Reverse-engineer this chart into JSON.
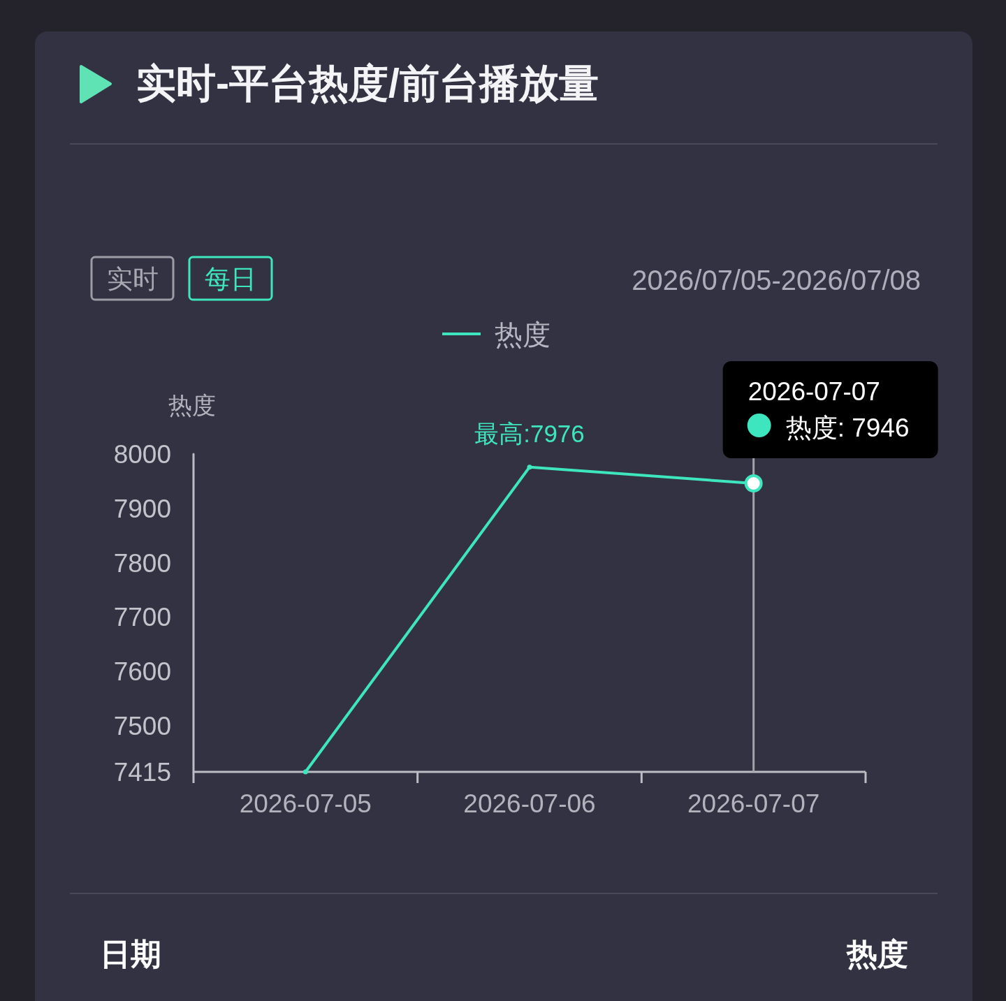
{
  "chart_data": {
    "type": "line",
    "title": "实时-平台热度/前台播放量",
    "subtitle": "2026/07/05-2026/07/08",
    "ylabel": "热度",
    "categories": [
      "2026-07-05",
      "2026-07-06",
      "2026-07-07"
    ],
    "series": [
      {
        "name": "热度",
        "color": "#3ee6bf",
        "values": [
          7415,
          7976,
          7946
        ],
        "value_labels": [
          null,
          "最高:7976",
          null
        ]
      }
    ],
    "ylim": [
      7415,
      8000
    ],
    "yticks": [
      7415,
      7500,
      7600,
      7700,
      7800,
      7900,
      8000
    ],
    "legend": "top",
    "marker": "circle",
    "line_style": "solid",
    "grid": false,
    "ref_lines": [
      {
        "axis": "x",
        "value": "2026-07-07",
        "color": "#a3a2ab"
      }
    ],
    "annotations": [
      {
        "text": "热度: 7946",
        "x": "2026-07-07",
        "y": 7946
      },
      "2026-07-07",
      "实时",
      "每日",
      "日期",
      "热度"
    ]
  }
}
